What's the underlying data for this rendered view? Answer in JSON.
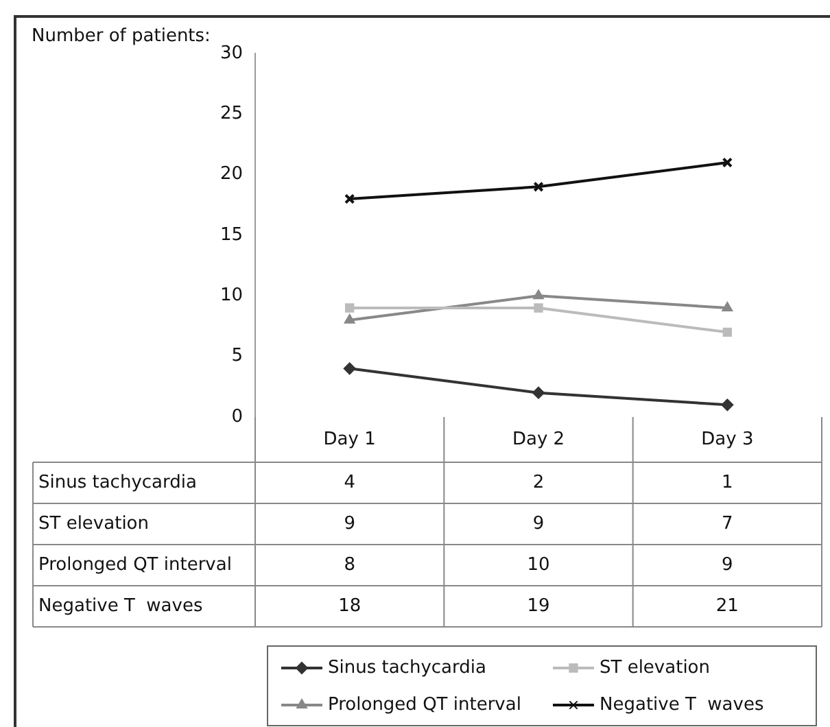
{
  "chart_data": {
    "type": "line",
    "ylabel": "Number of patients:",
    "categories": [
      "Day 1",
      "Day 2",
      "Day 3"
    ],
    "series": [
      {
        "name": "Sinus tachycardia",
        "color": "#333333",
        "marker": "diamond",
        "values": [
          4,
          2,
          1
        ]
      },
      {
        "name": "ST elevation",
        "color": "#bbbbbb",
        "marker": "square",
        "values": [
          9,
          9,
          7
        ]
      },
      {
        "name": "Prolonged QT interval",
        "color": "#888888",
        "marker": "triangle",
        "values": [
          8,
          10,
          9
        ]
      },
      {
        "name": "Negative T  waves",
        "color": "#111111",
        "marker": "cross",
        "values": [
          18,
          19,
          21
        ]
      }
    ],
    "ylim": [
      0,
      30
    ],
    "yticks": [
      0,
      5,
      10,
      15,
      20,
      25,
      30
    ],
    "grid": false,
    "legend": "bottom",
    "data_labels": true,
    "line_style": "solid"
  }
}
